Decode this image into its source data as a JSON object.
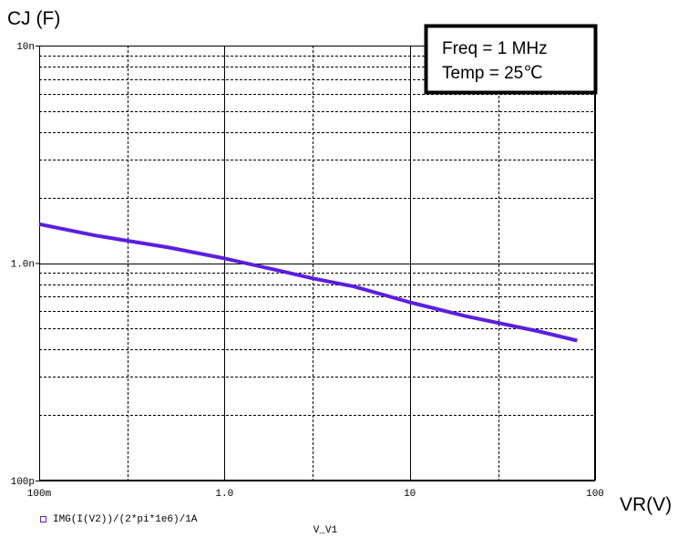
{
  "chart_data": {
    "type": "line",
    "title": "",
    "ylabel": "CJ (F)",
    "xlabel": "VR(V)",
    "x_variable_label": "V_V1",
    "x_scale": "log",
    "y_scale": "log",
    "xlim": [
      0.1,
      100
    ],
    "ylim": [
      1e-10,
      1e-08
    ],
    "grid": true,
    "x_ticks": [
      {
        "value": 0.1,
        "label": "100m"
      },
      {
        "value": 1,
        "label": "1.0"
      },
      {
        "value": 10,
        "label": "10"
      },
      {
        "value": 100,
        "label": "100"
      }
    ],
    "y_ticks": [
      {
        "value": 1e-10,
        "label": "100p"
      },
      {
        "value": 1e-09,
        "label": "1.0n"
      },
      {
        "value": 1e-08,
        "label": "10n"
      }
    ],
    "annotation": {
      "lines": [
        "Freq = 1 MHz",
        "Temp = 25℃"
      ]
    },
    "legend": {
      "position": "bottom-left",
      "marker": "hollow-square"
    },
    "series": [
      {
        "name": "IMG(I(V2))/(2*pi*1e6)/1A",
        "color": "#5a1fe0",
        "x": [
          0.1,
          0.2,
          0.5,
          1,
          2,
          3,
          5,
          10,
          20,
          50,
          80
        ],
        "y": [
          1.51e-09,
          1.34e-09,
          1.18e-09,
          1.05e-09,
          9.2e-10,
          8.5e-10,
          7.8e-10,
          6.6e-10,
          5.7e-10,
          4.85e-10,
          4.4e-10
        ]
      }
    ]
  }
}
